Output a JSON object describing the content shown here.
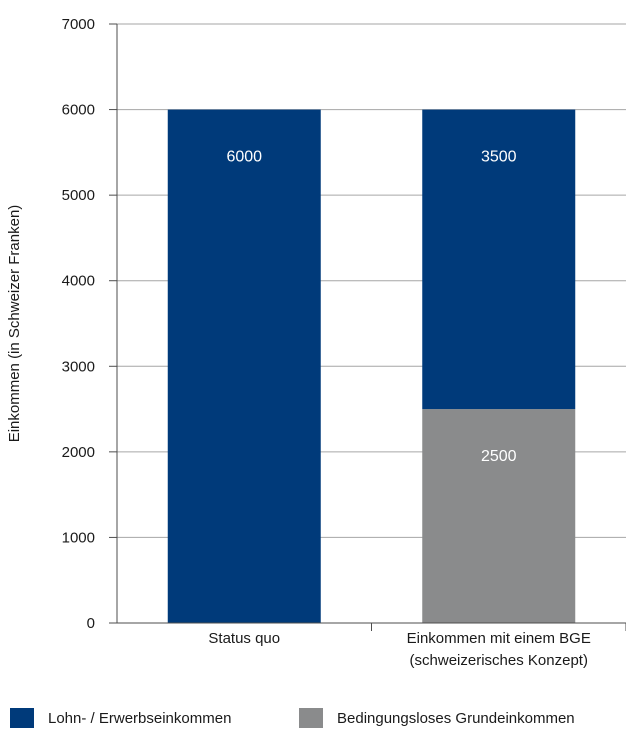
{
  "chart_data": {
    "type": "bar",
    "stacked": true,
    "categories": [
      [
        "Status quo"
      ],
      [
        "Einkommen mit einem BGE",
        "(schweizerisches Konzept)"
      ]
    ],
    "series": [
      {
        "name": "Bedingungsloses Grundeinkommen",
        "color": "#8a8b8c",
        "values": [
          0,
          2500
        ],
        "labels": [
          "",
          "2500"
        ]
      },
      {
        "name": "Lohn- / Erwerbseinkommen",
        "color": "#003a7a",
        "values": [
          6000,
          3500
        ],
        "labels": [
          "6000",
          "3500"
        ]
      }
    ],
    "title": "",
    "xlabel": "",
    "ylabel": "Einkommen (in Schweizer Franken)",
    "ylim": [
      0,
      7000
    ],
    "yticks": [
      0,
      1000,
      2000,
      3000,
      4000,
      5000,
      6000,
      7000
    ],
    "grid": true,
    "legend_position": "bottom"
  },
  "legend": [
    {
      "label": "Lohn- / Erwerbseinkommen",
      "color": "#003a7a"
    },
    {
      "label": "Bedingungsloses Grundeinkommen",
      "color": "#8a8b8c"
    }
  ]
}
